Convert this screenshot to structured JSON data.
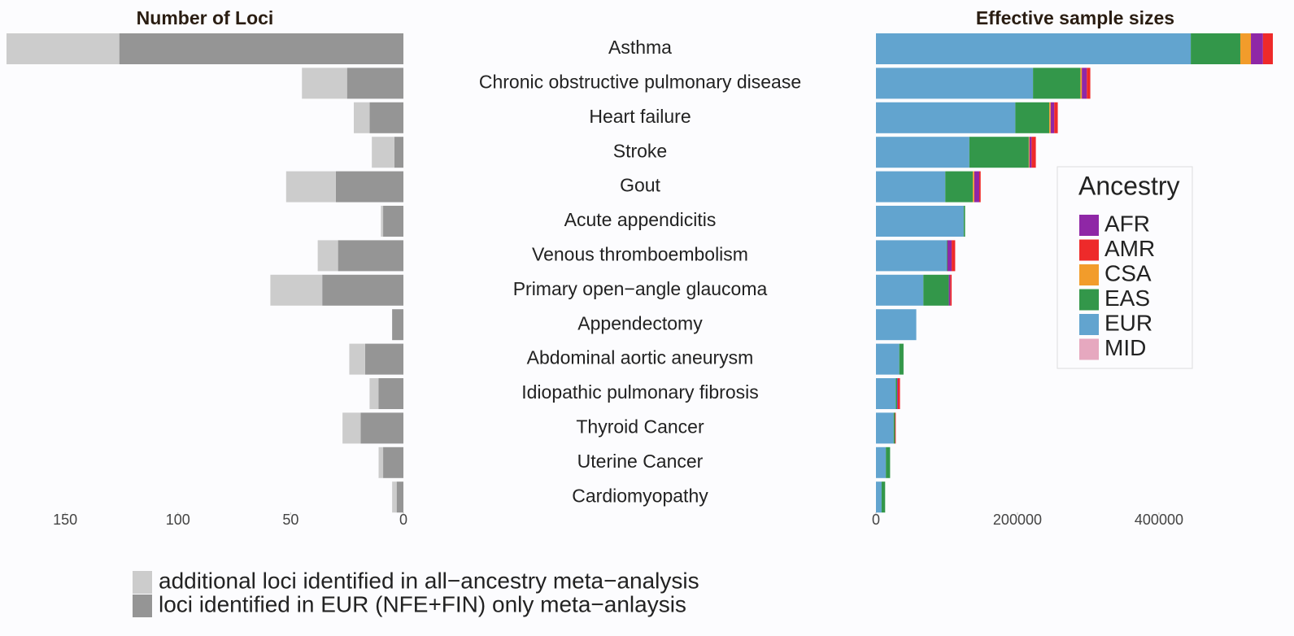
{
  "chart_data": [
    {
      "type": "bar",
      "orientation": "horizontal",
      "stacked": true,
      "x_reversed": true,
      "title": "Number of Loci",
      "categories": [
        "Asthma",
        "Chronic obstructive pulmonary disease",
        "Heart failure",
        "Stroke",
        "Gout",
        "Acute appendicitis",
        "Venous thromboembolism",
        "Primary open−angle glaucoma",
        "Appendectomy",
        "Abdominal aortic aneurysm",
        "Idiopathic pulmonary fibrosis",
        "Thyroid Cancer",
        "Uterine Cancer",
        "Cardiomyopathy"
      ],
      "series": [
        {
          "name": "additional loci identified in all−ancestry meta−analysis",
          "color": "#cccccc",
          "values": [
            50,
            20,
            7,
            10,
            22,
            1,
            9,
            23,
            0,
            7,
            4,
            8,
            2,
            2
          ]
        },
        {
          "name": "loci identified in EUR (NFE+FIN) only meta−anlaysis",
          "color": "#959595",
          "values": [
            126,
            25,
            15,
            4,
            30,
            9,
            29,
            36,
            5,
            17,
            11,
            19,
            9,
            3
          ]
        }
      ],
      "xlim": [
        0,
        176
      ],
      "xticks": [
        0,
        50,
        100,
        150
      ],
      "legend": "bottom"
    },
    {
      "type": "bar",
      "orientation": "horizontal",
      "stacked": true,
      "title": "Effective sample sizes",
      "legend_title": "Ancestry",
      "series": [
        {
          "name": "EUR",
          "color": "#62a4cf",
          "values": [
            445000,
            222000,
            197000,
            132000,
            98000,
            124000,
            100000,
            67000,
            57000,
            33000,
            28000,
            25000,
            14000,
            8000
          ]
        },
        {
          "name": "EAS",
          "color": "#33974a",
          "values": [
            70000,
            67000,
            48000,
            84000,
            39000,
            2000,
            1000,
            36000,
            0,
            6000,
            2000,
            2000,
            6000,
            5000
          ]
        },
        {
          "name": "CSA",
          "color": "#f29c2b",
          "values": [
            15000,
            2000,
            2000,
            1000,
            2000,
            0,
            0,
            0,
            0,
            0,
            0,
            0,
            0,
            0
          ]
        },
        {
          "name": "MID",
          "color": "#e6a8bf",
          "values": [
            0,
            0,
            0,
            0,
            0,
            0,
            0,
            0,
            0,
            0,
            0,
            0,
            0,
            0
          ]
        },
        {
          "name": "AFR",
          "color": "#8f27a6",
          "values": [
            17000,
            7000,
            5000,
            3000,
            7000,
            0,
            6000,
            2000,
            0,
            0,
            1000,
            0,
            0,
            0
          ]
        },
        {
          "name": "AMR",
          "color": "#ee2a2a",
          "values": [
            14000,
            5000,
            5000,
            6000,
            2000,
            0,
            5000,
            2000,
            0,
            0,
            3000,
            1000,
            0,
            0
          ]
        }
      ],
      "xlim": [
        0,
        561000
      ],
      "xticks": [
        0,
        200000,
        400000
      ],
      "legend": "right"
    }
  ]
}
